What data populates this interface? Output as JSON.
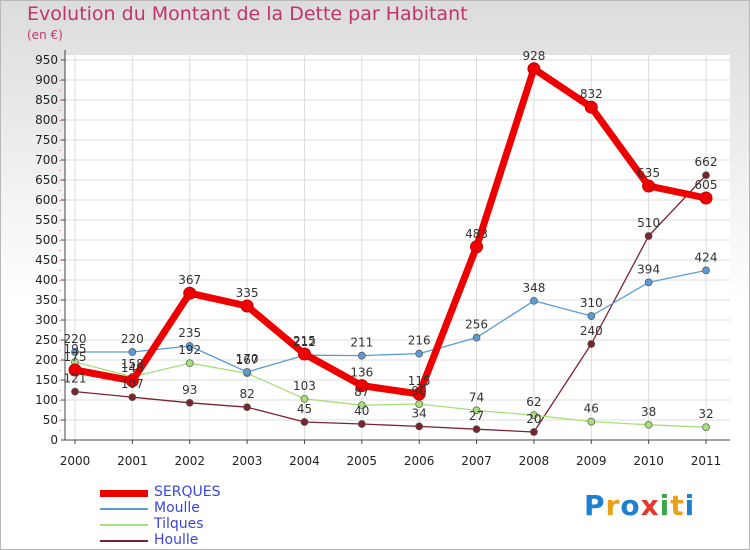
{
  "header": {
    "title": "Evolution du Montant de la Dette par Habitant",
    "subtitle": "(en €)"
  },
  "logo": {
    "text": "Proxiti",
    "colors": [
      "#1f7fd1",
      "#e8a21a",
      "#1f7fd1",
      "#e23b2e",
      "#3aa84a",
      "#e8a21a",
      "#1f7fd1"
    ]
  },
  "chart_data": {
    "type": "line",
    "title": "Evolution du Montant de la Dette par Habitant",
    "subtitle": "(en €)",
    "xlabel": "",
    "ylabel": "",
    "categories": [
      "2000",
      "2001",
      "2002",
      "2003",
      "2004",
      "2005",
      "2006",
      "2007",
      "2008",
      "2009",
      "2010",
      "2011"
    ],
    "ylim": [
      0,
      950
    ],
    "yticks": [
      0,
      50,
      100,
      150,
      200,
      250,
      300,
      350,
      400,
      450,
      500,
      550,
      600,
      650,
      700,
      750,
      800,
      850,
      900,
      950
    ],
    "grid": true,
    "legend_position": "bottom-left",
    "series": [
      {
        "name": "SERQUES",
        "values": [
          175,
          148,
          367,
          335,
          215,
          136,
          115,
          483,
          928,
          832,
          635,
          605
        ],
        "color": "#ee0000",
        "width": 7,
        "marker": 6
      },
      {
        "name": "Moulle",
        "values": [
          220,
          220,
          235,
          170,
          212,
          211,
          216,
          256,
          348,
          310,
          394,
          424
        ],
        "color": "#5b9bd5",
        "width": 1.3,
        "marker": 3.5
      },
      {
        "name": "Tilques",
        "values": [
          195,
          158,
          192,
          167,
          103,
          87,
          90,
          74,
          62,
          46,
          38,
          32
        ],
        "color": "#a6e07a",
        "width": 1.3,
        "marker": 3.5
      },
      {
        "name": "Houlle",
        "values": [
          121,
          107,
          93,
          82,
          45,
          40,
          34,
          27,
          20,
          240,
          510,
          662
        ],
        "color": "#7a2430",
        "width": 1.3,
        "marker": 3.5
      }
    ]
  }
}
